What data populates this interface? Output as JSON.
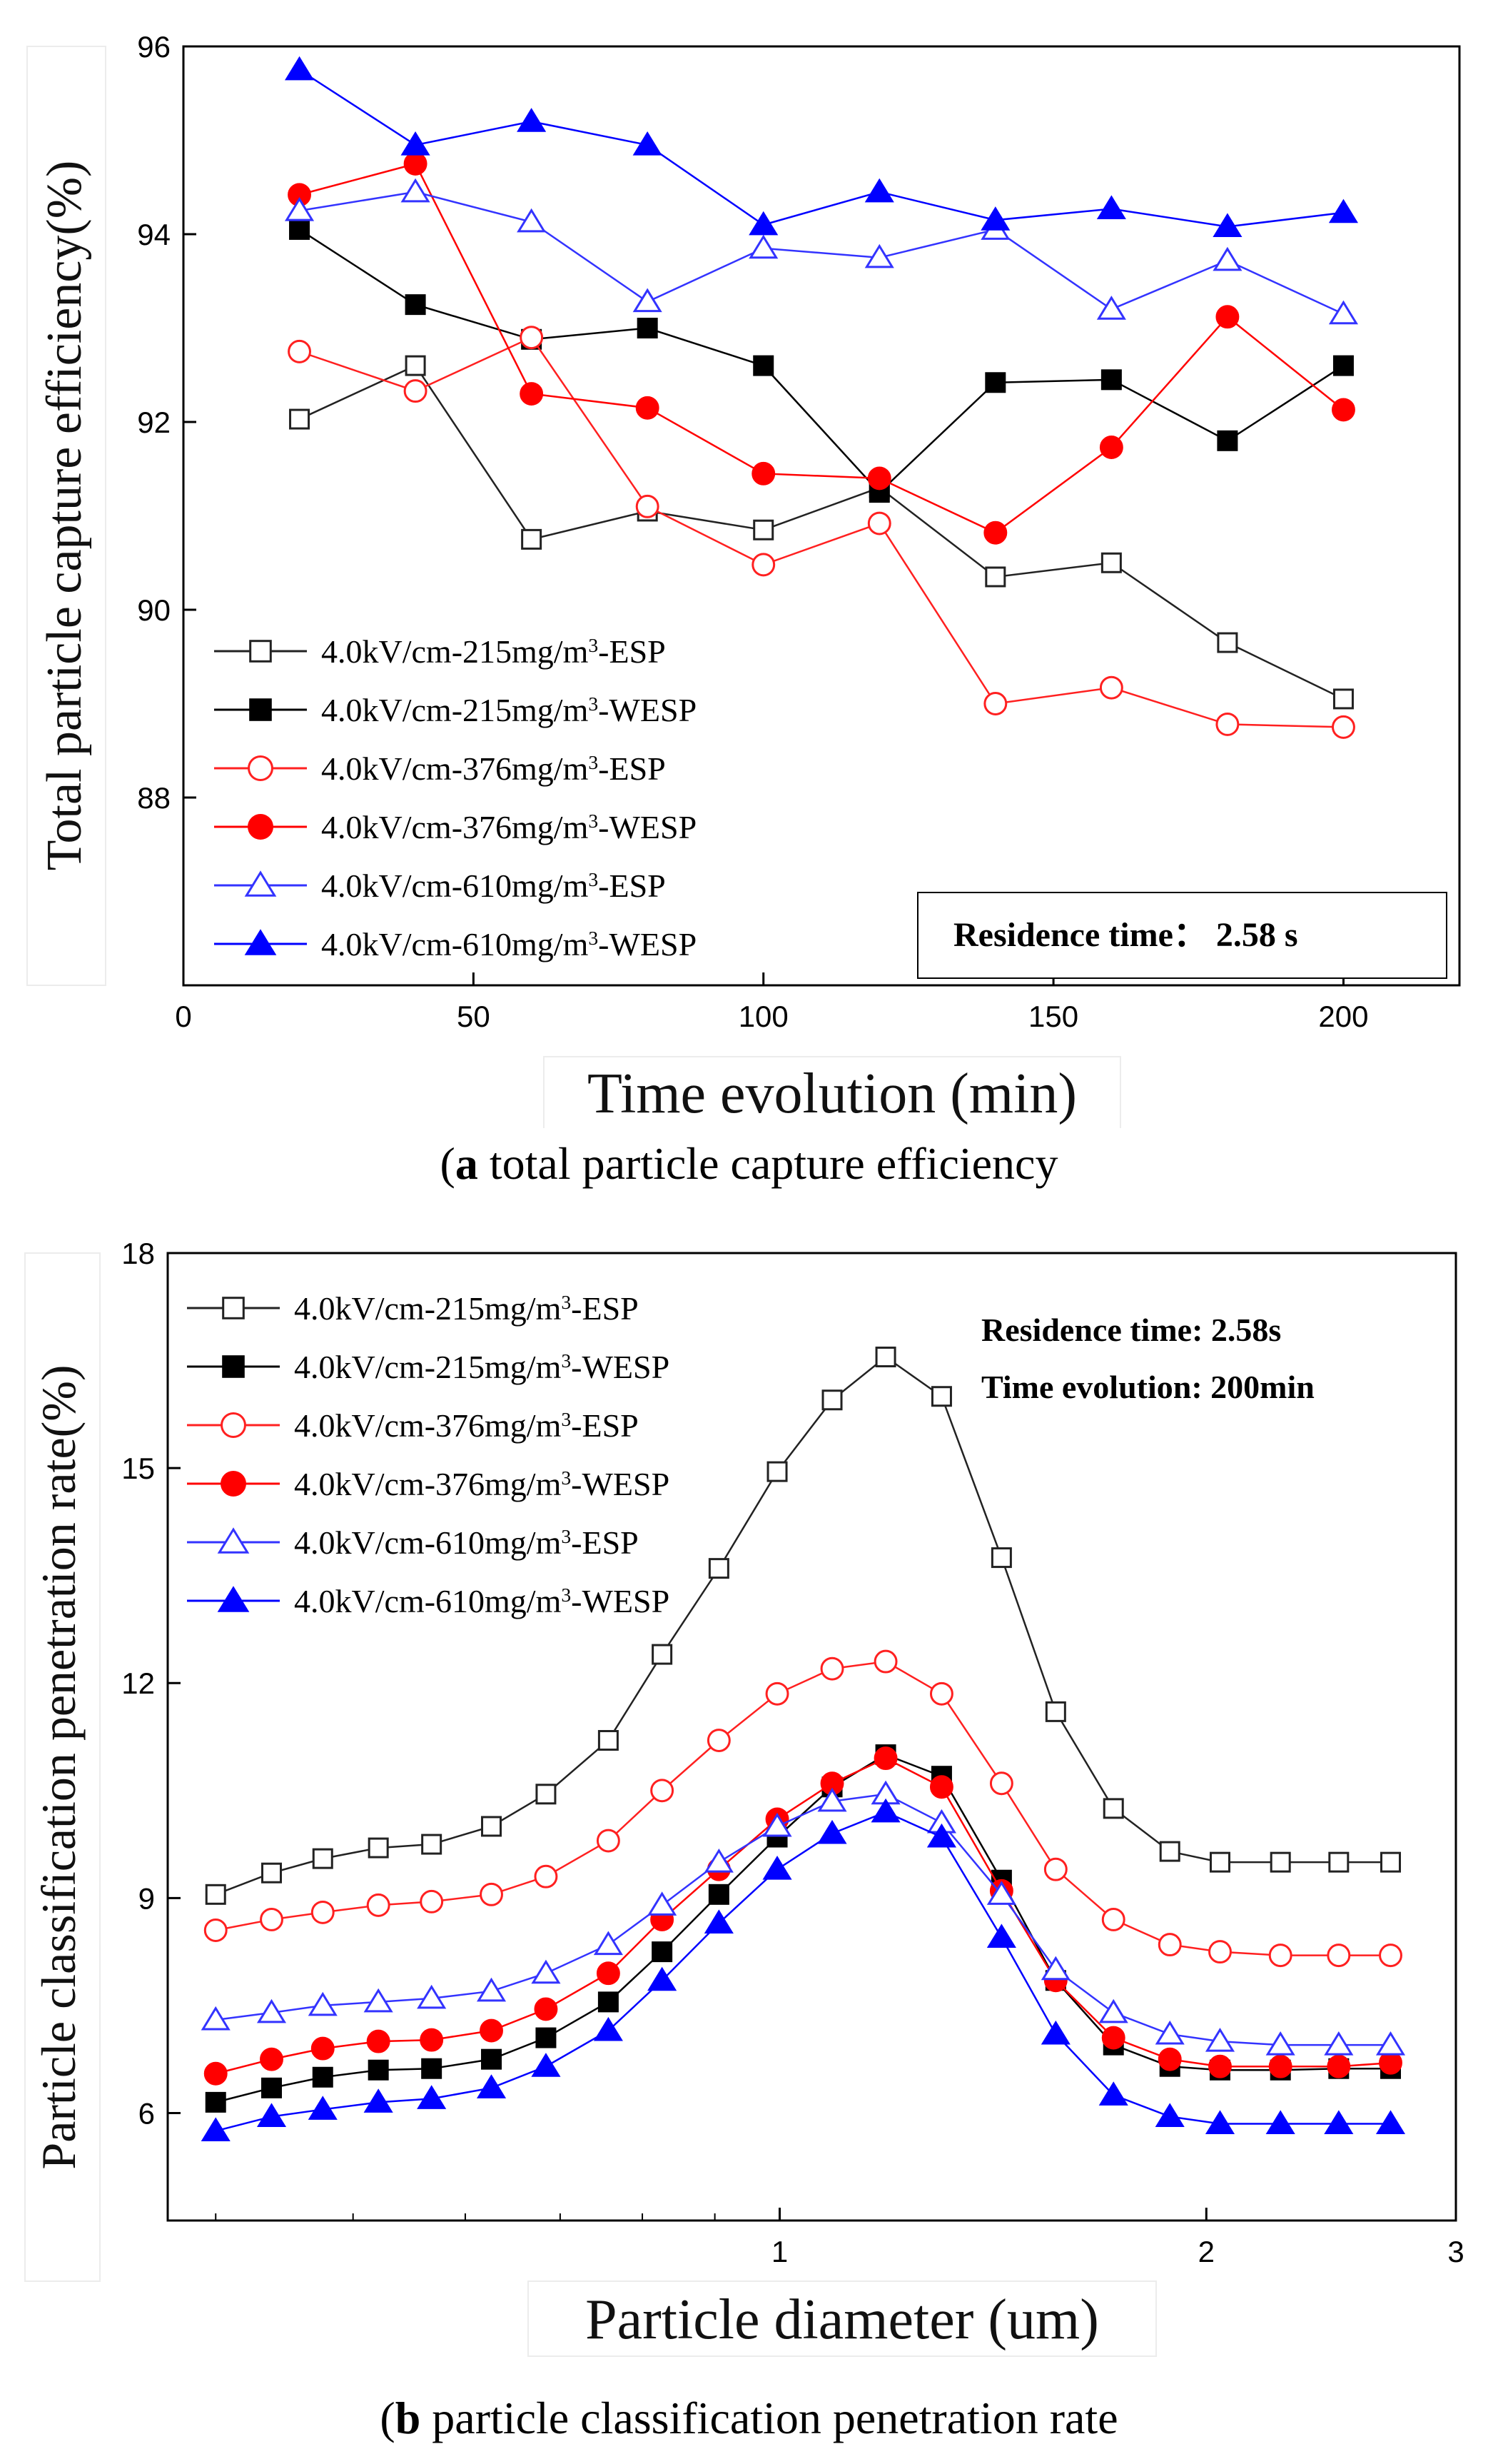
{
  "chart_data": [
    {
      "type": "line",
      "x": [
        20,
        40,
        60,
        80,
        100,
        120,
        140,
        160,
        180,
        200
      ],
      "xlim": [
        0,
        220
      ],
      "ylim": [
        86,
        96
      ],
      "x_ticks": [
        0,
        50,
        100,
        150,
        200
      ],
      "y_ticks": [
        88,
        90,
        92,
        94,
        96
      ],
      "xlabel": "Time evolution (min)",
      "ylabel": "Total particle capture efficiency(%)",
      "annotation": "Residence time： 2.58 s",
      "legend_position": "bottom-left",
      "series": [
        {
          "name": "4.0kV/cm-215mg/m3-ESP",
          "label_pre": "4.0kV/cm-215mg/m",
          "label_post": "-ESP",
          "color": "#222222",
          "marker": "square",
          "fill": "open",
          "values": [
            92.03,
            92.6,
            90.75,
            91.05,
            90.85,
            91.3,
            90.35,
            90.5,
            89.65,
            89.05
          ]
        },
        {
          "name": "4.0kV/cm-215mg/m3-WESP",
          "label_pre": "4.0kV/cm-215mg/m",
          "label_post": "-WESP",
          "color": "#000000",
          "marker": "square",
          "fill": "solid",
          "values": [
            94.05,
            93.25,
            92.88,
            93.0,
            92.6,
            91.25,
            92.42,
            92.45,
            91.8,
            92.6
          ]
        },
        {
          "name": "4.0kV/cm-376mg/m3-ESP",
          "label_pre": "4.0kV/cm-376mg/m",
          "label_post": "-ESP",
          "color": "#ff2020",
          "marker": "circle",
          "fill": "open",
          "values": [
            92.75,
            92.33,
            92.9,
            91.1,
            90.48,
            90.92,
            89.0,
            89.17,
            88.78,
            88.75
          ]
        },
        {
          "name": "4.0kV/cm-376mg/m3-WESP",
          "label_pre": "4.0kV/cm-376mg/m",
          "label_post": "-WESP",
          "color": "#ff0000",
          "marker": "circle",
          "fill": "solid",
          "values": [
            94.42,
            94.75,
            92.3,
            92.15,
            91.45,
            91.4,
            90.82,
            91.73,
            93.12,
            92.13
          ]
        },
        {
          "name": "4.0kV/cm-610mg/m3-ESP",
          "label_pre": "4.0kV/cm-610mg/m",
          "label_post": "-ESP",
          "color": "#3333ff",
          "marker": "triangle",
          "fill": "open",
          "values": [
            94.25,
            94.45,
            94.13,
            93.28,
            93.85,
            93.75,
            94.05,
            93.2,
            93.72,
            93.15
          ]
        },
        {
          "name": "4.0kV/cm-610mg/m3-WESP",
          "label_pre": "4.0kV/cm-610mg/m",
          "label_post": "-WESP",
          "color": "#0000ff",
          "marker": "triangle",
          "fill": "solid",
          "values": [
            95.75,
            94.95,
            95.2,
            94.95,
            94.1,
            94.45,
            94.15,
            94.27,
            94.08,
            94.23
          ]
        }
      ]
    },
    {
      "type": "line",
      "x_scale": "log",
      "x": [
        0.4,
        0.438,
        0.476,
        0.521,
        0.568,
        0.626,
        0.684,
        0.757,
        0.826,
        0.906,
        0.996,
        1.089,
        1.188,
        1.301,
        1.434,
        1.566,
        1.72,
        1.885,
        2.045,
        2.256,
        2.48,
        2.698
      ],
      "xlim": [
        0.37,
        3.0
      ],
      "ylim": [
        4.5,
        18
      ],
      "x_ticks": [
        1,
        2,
        3
      ],
      "y_ticks": [
        6,
        9,
        12,
        15,
        18
      ],
      "xlabel": "Particle diameter (um)",
      "ylabel": "Particle classification penetration rate(%)",
      "annotation_lines": [
        "Residence time: 2.58s",
        "Time evolution: 200min"
      ],
      "legend_position": "top-left",
      "series": [
        {
          "name": "4.0kV/cm-215mg/m3-ESP",
          "label_pre": "4.0kV/cm-215mg/m",
          "label_post": "-ESP",
          "color": "#222222",
          "marker": "square",
          "fill": "open",
          "values": [
            9.05,
            9.35,
            9.55,
            9.7,
            9.75,
            10.0,
            10.45,
            11.2,
            12.4,
            13.6,
            14.95,
            15.95,
            16.55,
            16.0,
            13.75,
            11.6,
            10.25,
            9.65,
            9.5,
            9.5,
            9.5,
            9.5
          ]
        },
        {
          "name": "4.0kV/cm-215mg/m3-WESP",
          "label_pre": "4.0kV/cm-215mg/m",
          "label_post": "-WESP",
          "color": "#000000",
          "marker": "square",
          "fill": "solid",
          "values": [
            6.15,
            6.35,
            6.5,
            6.6,
            6.62,
            6.75,
            7.05,
            7.55,
            8.25,
            9.05,
            9.85,
            10.55,
            11.0,
            10.7,
            9.25,
            7.85,
            6.95,
            6.65,
            6.6,
            6.6,
            6.62,
            6.62
          ]
        },
        {
          "name": "4.0kV/cm-376mg/m3-ESP",
          "label_pre": "4.0kV/cm-376mg/m",
          "label_post": "-ESP",
          "color": "#ff2020",
          "marker": "circle",
          "fill": "open",
          "values": [
            8.55,
            8.7,
            8.8,
            8.9,
            8.95,
            9.05,
            9.3,
            9.8,
            10.5,
            11.2,
            11.85,
            12.2,
            12.3,
            11.85,
            10.6,
            9.4,
            8.7,
            8.35,
            8.25,
            8.2,
            8.2,
            8.2
          ]
        },
        {
          "name": "4.0kV/cm-376mg/m3-WESP",
          "label_pre": "4.0kV/cm-376mg/m",
          "label_post": "-WESP",
          "color": "#ff0000",
          "marker": "circle",
          "fill": "solid",
          "values": [
            6.55,
            6.75,
            6.9,
            7.0,
            7.02,
            7.15,
            7.45,
            7.95,
            8.7,
            9.4,
            10.1,
            10.6,
            10.95,
            10.55,
            9.1,
            7.85,
            7.05,
            6.75,
            6.65,
            6.65,
            6.65,
            6.7
          ]
        },
        {
          "name": "4.0kV/cm-610mg/m3-ESP",
          "label_pre": "4.0kV/cm-610mg/m",
          "label_post": "-ESP",
          "color": "#3333ff",
          "marker": "triangle",
          "fill": "open",
          "values": [
            7.3,
            7.4,
            7.5,
            7.55,
            7.6,
            7.7,
            7.95,
            8.35,
            8.9,
            9.5,
            10.0,
            10.35,
            10.45,
            10.05,
            9.05,
            8.0,
            7.4,
            7.1,
            7.0,
            6.95,
            6.95,
            6.95
          ]
        },
        {
          "name": "4.0kV/cm-610mg/m3-WESP",
          "label_pre": "4.0kV/cm-610mg/m",
          "label_post": "-WESP",
          "color": "#0000ff",
          "marker": "triangle",
          "fill": "solid",
          "values": [
            5.75,
            5.95,
            6.05,
            6.15,
            6.2,
            6.35,
            6.65,
            7.15,
            7.85,
            8.65,
            9.4,
            9.9,
            10.2,
            9.85,
            8.45,
            7.1,
            6.25,
            5.95,
            5.85,
            5.85,
            5.85,
            5.85
          ]
        }
      ]
    }
  ],
  "captions": [
    {
      "label": "a",
      "text": " total particle capture efficiency"
    },
    {
      "label": "b",
      "text": " particle classification penetration rate"
    }
  ]
}
